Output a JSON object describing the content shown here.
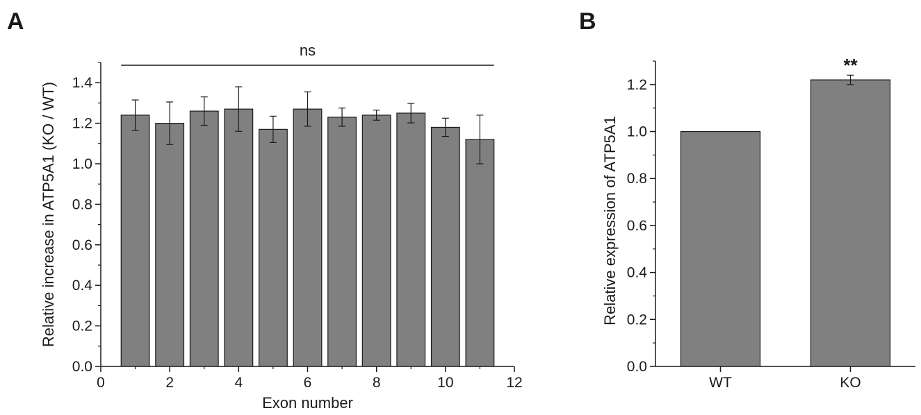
{
  "chart_data": [
    {
      "panel": "A",
      "type": "bar",
      "xlabel": "Exon number",
      "ylabel": "Relative increase in ATP5A1 (KO / WT)",
      "xlim": [
        0,
        12
      ],
      "ylim": [
        0,
        1.5
      ],
      "xticks": [
        "0",
        "2",
        "4",
        "6",
        "8",
        "10",
        "12"
      ],
      "yticks": [
        "0.0",
        "0.2",
        "0.4",
        "0.6",
        "0.8",
        "1.0",
        "1.2",
        "1.4"
      ],
      "x": [
        1,
        2,
        3,
        4,
        5,
        6,
        7,
        8,
        9,
        10,
        11
      ],
      "values": [
        1.24,
        1.2,
        1.26,
        1.27,
        1.17,
        1.27,
        1.23,
        1.24,
        1.25,
        1.18,
        1.12
      ],
      "errors": [
        0.075,
        0.105,
        0.07,
        0.11,
        0.065,
        0.085,
        0.045,
        0.025,
        0.048,
        0.045,
        0.12
      ],
      "bar_color": "#808080",
      "annotation": "ns"
    },
    {
      "panel": "B",
      "type": "bar",
      "xlabel": "",
      "ylabel": "Relative expression of ATP5A1",
      "ylim": [
        0,
        1.3
      ],
      "yticks": [
        "0.0",
        "0.2",
        "0.4",
        "0.6",
        "0.8",
        "1.0",
        "1.2"
      ],
      "categories": [
        "WT",
        "KO"
      ],
      "values": [
        1.0,
        1.22
      ],
      "errors": [
        0,
        0.02
      ],
      "bar_color": "#808080",
      "annotation": "**"
    }
  ]
}
